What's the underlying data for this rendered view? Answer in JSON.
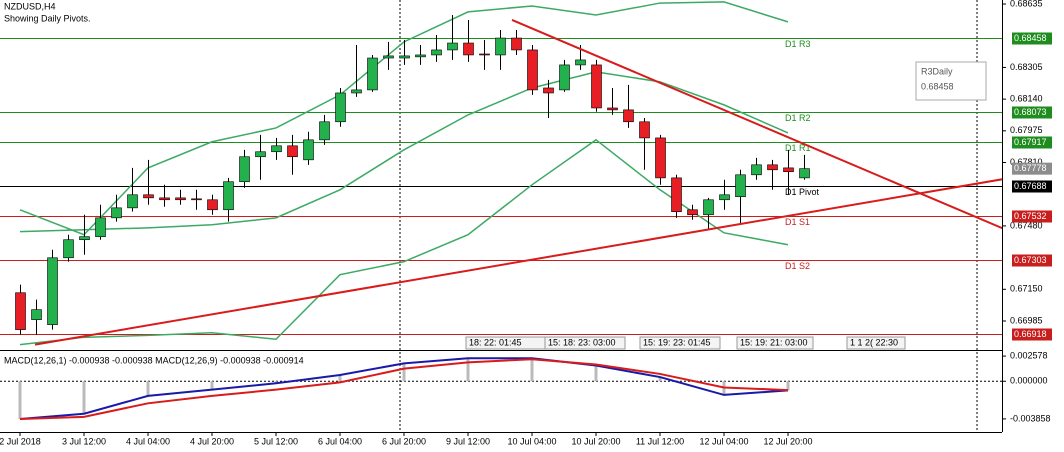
{
  "header": {
    "symbol": "NZDUSD,H4",
    "note": "Showing Daily Pivots."
  },
  "tooltip": {
    "name": "R3Daily",
    "value": "0.68458"
  },
  "timers": [
    "18: 22: 01:45",
    "15: 18: 23: 03:00",
    "15: 19: 23: 01:45",
    "15: 19: 21: 03:00",
    "1 1 2( 22:30"
  ],
  "chart_data": [
    {
      "type": "candlestick",
      "colors": {
        "up": "#22b14c",
        "down": "#e81e25",
        "band": "#3caa64",
        "trend": "#d81b1b"
      },
      "xticks": [
        {
          "value": 0,
          "label": "2 Jul 2018"
        },
        {
          "value": 4,
          "label": "3 Jul 12:00"
        },
        {
          "value": 8,
          "label": "4 Jul 04:00"
        },
        {
          "value": 12,
          "label": "4 Jul 20:00"
        },
        {
          "value": 16,
          "label": "5 Jul 12:00"
        },
        {
          "value": 20,
          "label": "6 Jul 04:00"
        },
        {
          "value": 24,
          "label": "6 Jul 20:00"
        },
        {
          "value": 28,
          "label": "9 Jul 12:00"
        },
        {
          "value": 32,
          "label": "10 Jul 04:00"
        },
        {
          "value": 36,
          "label": "10 Jul 20:00"
        },
        {
          "value": 40,
          "label": "11 Jul 12:00"
        },
        {
          "value": 44,
          "label": "12 Jul 04:00"
        },
        {
          "value": 48,
          "label": "12 Jul 20:00"
        }
      ],
      "ylim": [
        0.6686,
        0.68656
      ],
      "yticks": [
        0.68635,
        0.68305,
        {
          "value": 0.6814,
          "label": "0.68140"
        },
        0.67975,
        {
          "value": 0.6781,
          "label": "0.67810"
        },
        {
          "value": 0.6748,
          "label": "0.67480"
        },
        {
          "value": 0.6715,
          "label": "0.67150"
        },
        0.66985
      ],
      "open": [
        0.67132,
        0.66992,
        0.66966,
        0.67314,
        0.67408,
        0.67424,
        0.67522,
        0.67574,
        0.67642,
        0.67626,
        0.67626,
        0.67621,
        0.67616,
        0.67564,
        0.6771,
        0.6784,
        0.67866,
        0.67897,
        0.67824,
        0.67928,
        0.68022,
        0.68172,
        0.68188,
        0.68354,
        0.68354,
        0.6836,
        0.6837,
        0.68396,
        0.68432,
        0.68375,
        0.6837,
        0.68458,
        0.68396,
        0.68198,
        0.68188,
        0.68318,
        0.68318,
        0.68094,
        0.68084,
        0.68022,
        0.67938,
        0.6773,
        0.67564,
        0.67538,
        0.67616,
        0.67632,
        0.67746,
        0.67798,
        0.67782,
        0.6773
      ],
      "high": [
        0.67174,
        0.67096,
        0.67356,
        0.67434,
        0.67538,
        0.6759,
        0.67642,
        0.67782,
        0.67824,
        0.67694,
        0.67668,
        0.67668,
        0.67642,
        0.6773,
        0.67876,
        0.67954,
        0.67938,
        0.67954,
        0.6797,
        0.68058,
        0.68198,
        0.68422,
        0.6837,
        0.68438,
        0.68448,
        0.68422,
        0.68474,
        0.68578,
        0.68552,
        0.68448,
        0.685,
        0.685,
        0.68422,
        0.6824,
        0.68344,
        0.68422,
        0.68344,
        0.68198,
        0.68214,
        0.68042,
        0.67954,
        0.67746,
        0.6759,
        0.67626,
        0.6772,
        0.67772,
        0.67834,
        0.67824,
        0.67876,
        0.6785
      ],
      "low": [
        0.66914,
        0.66914,
        0.6694,
        0.67294,
        0.6733,
        0.67408,
        0.67502,
        0.67554,
        0.6759,
        0.6758,
        0.6759,
        0.67564,
        0.67538,
        0.67502,
        0.67678,
        0.6772,
        0.67824,
        0.67746,
        0.67798,
        0.67902,
        0.67996,
        0.68152,
        0.68178,
        0.68292,
        0.68318,
        0.68318,
        0.68334,
        0.68344,
        0.68334,
        0.68292,
        0.68292,
        0.6837,
        0.68162,
        0.68042,
        0.68178,
        0.68292,
        0.68074,
        0.68058,
        0.6799,
        0.67772,
        0.67694,
        0.67522,
        0.67512,
        0.6746,
        0.67564,
        0.67486,
        0.6772,
        0.67668,
        0.67642,
        0.6772
      ],
      "close": [
        0.6694,
        0.67044,
        0.67314,
        0.67408,
        0.67424,
        0.67522,
        0.67574,
        0.67642,
        0.67626,
        0.67616,
        0.67616,
        0.67616,
        0.67564,
        0.6771,
        0.6784,
        0.67866,
        0.67897,
        0.6784,
        0.67928,
        0.68022,
        0.68172,
        0.68188,
        0.68354,
        0.68365,
        0.68365,
        0.6837,
        0.68396,
        0.68432,
        0.6837,
        0.6837,
        0.68458,
        0.68396,
        0.68188,
        0.68172,
        0.68318,
        0.68344,
        0.68094,
        0.68084,
        0.68022,
        0.67938,
        0.6773,
        0.67554,
        0.67538,
        0.67616,
        0.67642,
        0.67746,
        0.67798,
        0.67772,
        0.67762,
        0.67778
      ],
      "bands": [
        {
          "x": [
            0,
            4,
            8,
            12,
            16,
            20,
            24,
            28,
            32,
            36,
            40,
            44,
            48
          ],
          "values": [
            0.67564,
            0.67434,
            0.67782,
            0.67918,
            0.6799,
            0.68162,
            0.68438,
            0.68594,
            0.68625,
            0.68578,
            0.6864,
            0.68646,
            0.68542
          ]
        },
        {
          "x": [
            0,
            4,
            8,
            12,
            16,
            20,
            24,
            28,
            32,
            36,
            40,
            44,
            48
          ],
          "values": [
            0.6745,
            0.6746,
            0.6747,
            0.67486,
            0.67522,
            0.67668,
            0.67876,
            0.68058,
            0.68198,
            0.68282,
            0.6823,
            0.6811,
            0.67964
          ]
        },
        {
          "x": [
            0,
            4,
            8,
            12,
            16,
            20,
            24,
            28,
            32,
            36,
            40,
            44,
            48
          ],
          "values": [
            0.66862,
            0.669,
            0.6691,
            0.66924,
            0.6689,
            0.67226,
            0.67294,
            0.67434,
            0.67694,
            0.67928,
            0.67668,
            0.67444,
            0.67382
          ]
        }
      ],
      "trendlines": [
        {
          "x": [
            30.75,
            61.9
          ],
          "values": [
            0.68552,
            0.6745
          ]
        },
        {
          "x": [
            0.94,
            61.9
          ],
          "values": [
            0.66862,
            0.6773
          ]
        }
      ],
      "levels": [
        {
          "name": "D1 R3",
          "value": 0.68458,
          "color": "#1e8c1e"
        },
        {
          "name": "D1 R2",
          "value": 0.68073,
          "color": "#1e8c1e"
        },
        {
          "name": "D1 R1",
          "value": 0.67917,
          "color": "#1e8c1e"
        },
        {
          "name": "D1 Pivot",
          "value": 0.67688,
          "color": "#000000"
        },
        {
          "name": "D1 S1",
          "value": 0.67532,
          "color": "#c81e1e"
        },
        {
          "name": "D1 S2",
          "value": 0.67303,
          "color": "#c81e1e"
        },
        {
          "value": 0.66918,
          "color": "#c81e1e"
        }
      ],
      "current_price": {
        "value": 0.67778,
        "color": "#8c8c8c"
      }
    },
    {
      "type": "macd",
      "title": "MACD(12,26,1) -0.000938 -0.000938 MACD(12,26,9) -0.000938 -0.000914",
      "ylim": [
        -0.0052,
        0.0031
      ],
      "yticks": [
        0.002578,
        {
          "value": 0,
          "label": "0.000000"
        },
        -0.003858
      ],
      "x": [
        0,
        4,
        8,
        12,
        16,
        20,
        24,
        28,
        32,
        36,
        40,
        44,
        48
      ],
      "series": [
        {
          "name": "MACD(12,26,1)",
          "color": "#1a1aa8",
          "values": [
            -0.00387,
            -0.00333,
            -0.0015,
            -0.00086,
            -0.00021,
            0.00064,
            0.00183,
            0.00236,
            0.00236,
            0.00161,
            0.00043,
            -0.0014,
            -0.00094
          ]
        },
        {
          "name": "MACD(12,26,9)",
          "color": "#d81b1b",
          "values": [
            -0.00387,
            -0.00365,
            -0.00226,
            -0.0015,
            -0.00086,
            -0.00011,
            0.00129,
            0.00193,
            0.00226,
            0.00172,
            0.00075,
            -0.00064,
            -0.00091
          ]
        }
      ]
    }
  ]
}
